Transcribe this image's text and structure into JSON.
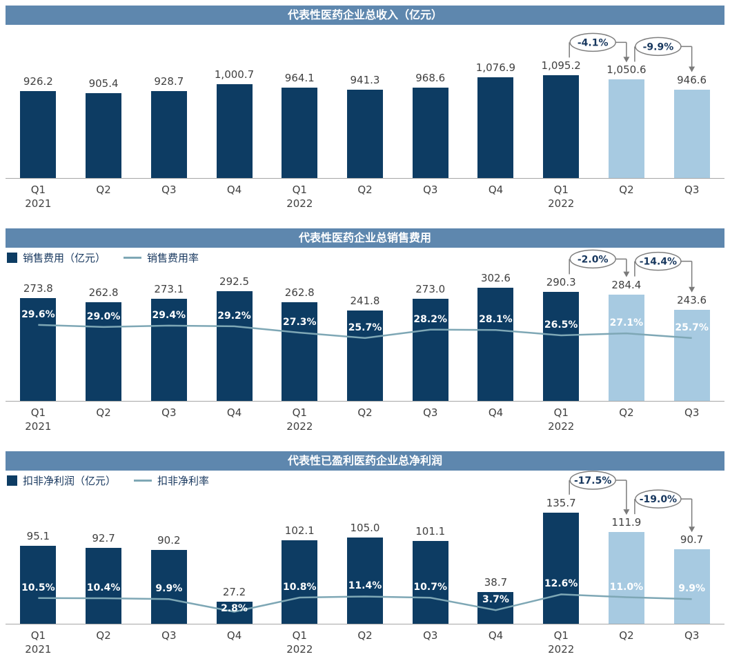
{
  "colors": {
    "header_bg": "#5e87ae",
    "header_text": "#ffffff",
    "bar_dark": "#0d3c63",
    "bar_light": "#a7cae1",
    "line": "#7ea7b5",
    "value_label": "#404040",
    "axis_label": "#404040",
    "pct_label": "#ffffff",
    "annotation_text": "#17375e",
    "annotation_border": "#7f7f7f",
    "annotation_line": "#7a7a7a",
    "baseline": "#a6a6a6"
  },
  "chart_data": [
    {
      "type": "bar",
      "title": "代表性医药企业总收入（亿元）",
      "categories": [
        "Q1",
        "Q2",
        "Q3",
        "Q4",
        "Q1",
        "Q2",
        "Q3",
        "Q4",
        "Q1",
        "Q2",
        "Q3"
      ],
      "year_labels": [
        "2021",
        "",
        "",
        "",
        "2022",
        "",
        "",
        "",
        "2022",
        "",
        ""
      ],
      "values": [
        926.2,
        905.4,
        928.7,
        1000.7,
        964.1,
        941.3,
        968.6,
        1076.9,
        1095.2,
        1050.6,
        946.6
      ],
      "value_labels": [
        "926.2",
        "905.4",
        "928.7",
        "1,000.7",
        "964.1",
        "941.3",
        "968.6",
        "1,076.9",
        "1,095.2",
        "1,050.6",
        "946.6"
      ],
      "light_bar_indices": [
        9,
        10
      ],
      "ylim": [
        0,
        1400
      ],
      "annotations": [
        {
          "label": "-4.1%",
          "from": 8,
          "to": 9
        },
        {
          "label": "-9.9%",
          "from": 9,
          "to": 10
        }
      ]
    },
    {
      "type": "bar+line",
      "title": "代表性医药企业总销售费用",
      "legend": [
        {
          "swatch": "bar",
          "label": "销售费用（亿元）"
        },
        {
          "swatch": "line",
          "label": "销售费用率"
        }
      ],
      "categories": [
        "Q1",
        "Q2",
        "Q3",
        "Q4",
        "Q1",
        "Q2",
        "Q3",
        "Q4",
        "Q1",
        "Q2",
        "Q3"
      ],
      "year_labels": [
        "2021",
        "",
        "",
        "",
        "2022",
        "",
        "",
        "",
        "2022",
        "",
        ""
      ],
      "values": [
        273.8,
        262.8,
        273.1,
        292.5,
        262.8,
        241.8,
        273.0,
        302.6,
        290.3,
        284.4,
        243.6
      ],
      "value_labels": [
        "273.8",
        "262.8",
        "273.1",
        "292.5",
        "262.8",
        "241.8",
        "273.0",
        "302.6",
        "290.3",
        "284.4",
        "243.6"
      ],
      "line_series": {
        "name": "销售费用率",
        "values": [
          29.6,
          29.0,
          29.4,
          29.2,
          27.3,
          25.7,
          28.2,
          28.1,
          26.5,
          27.1,
          25.7
        ],
        "labels": [
          "29.6%",
          "29.0%",
          "29.4%",
          "29.2%",
          "27.3%",
          "25.7%",
          "28.2%",
          "28.1%",
          "26.5%",
          "27.1%",
          "25.7%"
        ],
        "axis": [
          7,
          46
        ]
      },
      "light_bar_indices": [
        9,
        10
      ],
      "ylim": [
        0,
        350
      ],
      "annotations": [
        {
          "label": "-2.0%",
          "from": 8,
          "to": 9
        },
        {
          "label": "-14.4%",
          "from": 9,
          "to": 10
        }
      ]
    },
    {
      "type": "bar+line",
      "title": "代表性已盈利医药企业总净利润",
      "legend": [
        {
          "swatch": "bar",
          "label": "扣非净利润（亿元）"
        },
        {
          "swatch": "line",
          "label": "扣非净利率"
        }
      ],
      "categories": [
        "Q1",
        "Q2",
        "Q3",
        "Q4",
        "Q1",
        "Q2",
        "Q3",
        "Q4",
        "Q1",
        "Q2",
        "Q3"
      ],
      "year_labels": [
        "2021",
        "",
        "",
        "",
        "2022",
        "",
        "",
        "",
        "2022",
        "",
        ""
      ],
      "values": [
        95.1,
        92.7,
        90.2,
        27.2,
        102.1,
        105.0,
        101.1,
        38.7,
        135.7,
        111.9,
        90.7
      ],
      "value_labels": [
        "95.1",
        "92.7",
        "90.2",
        "27.2",
        "102.1",
        "105.0",
        "101.1",
        "38.7",
        "135.7",
        "111.9",
        "90.7"
      ],
      "line_series": {
        "name": "扣非净利率",
        "values": [
          10.5,
          10.4,
          9.9,
          2.8,
          10.8,
          11.4,
          10.7,
          3.7,
          12.6,
          11.0,
          9.9
        ],
        "labels": [
          "10.5%",
          "10.4%",
          "9.9%",
          "2.8%",
          "10.8%",
          "11.4%",
          "10.7%",
          "3.7%",
          "12.6%",
          "11.0%",
          "9.9%"
        ],
        "axis": [
          -4,
          70
        ]
      },
      "light_bar_indices": [
        9,
        10
      ],
      "ylim": [
        0,
        160
      ],
      "annotations": [
        {
          "label": "-17.5%",
          "from": 8,
          "to": 9
        },
        {
          "label": "-19.0%",
          "from": 9,
          "to": 10
        }
      ]
    }
  ]
}
